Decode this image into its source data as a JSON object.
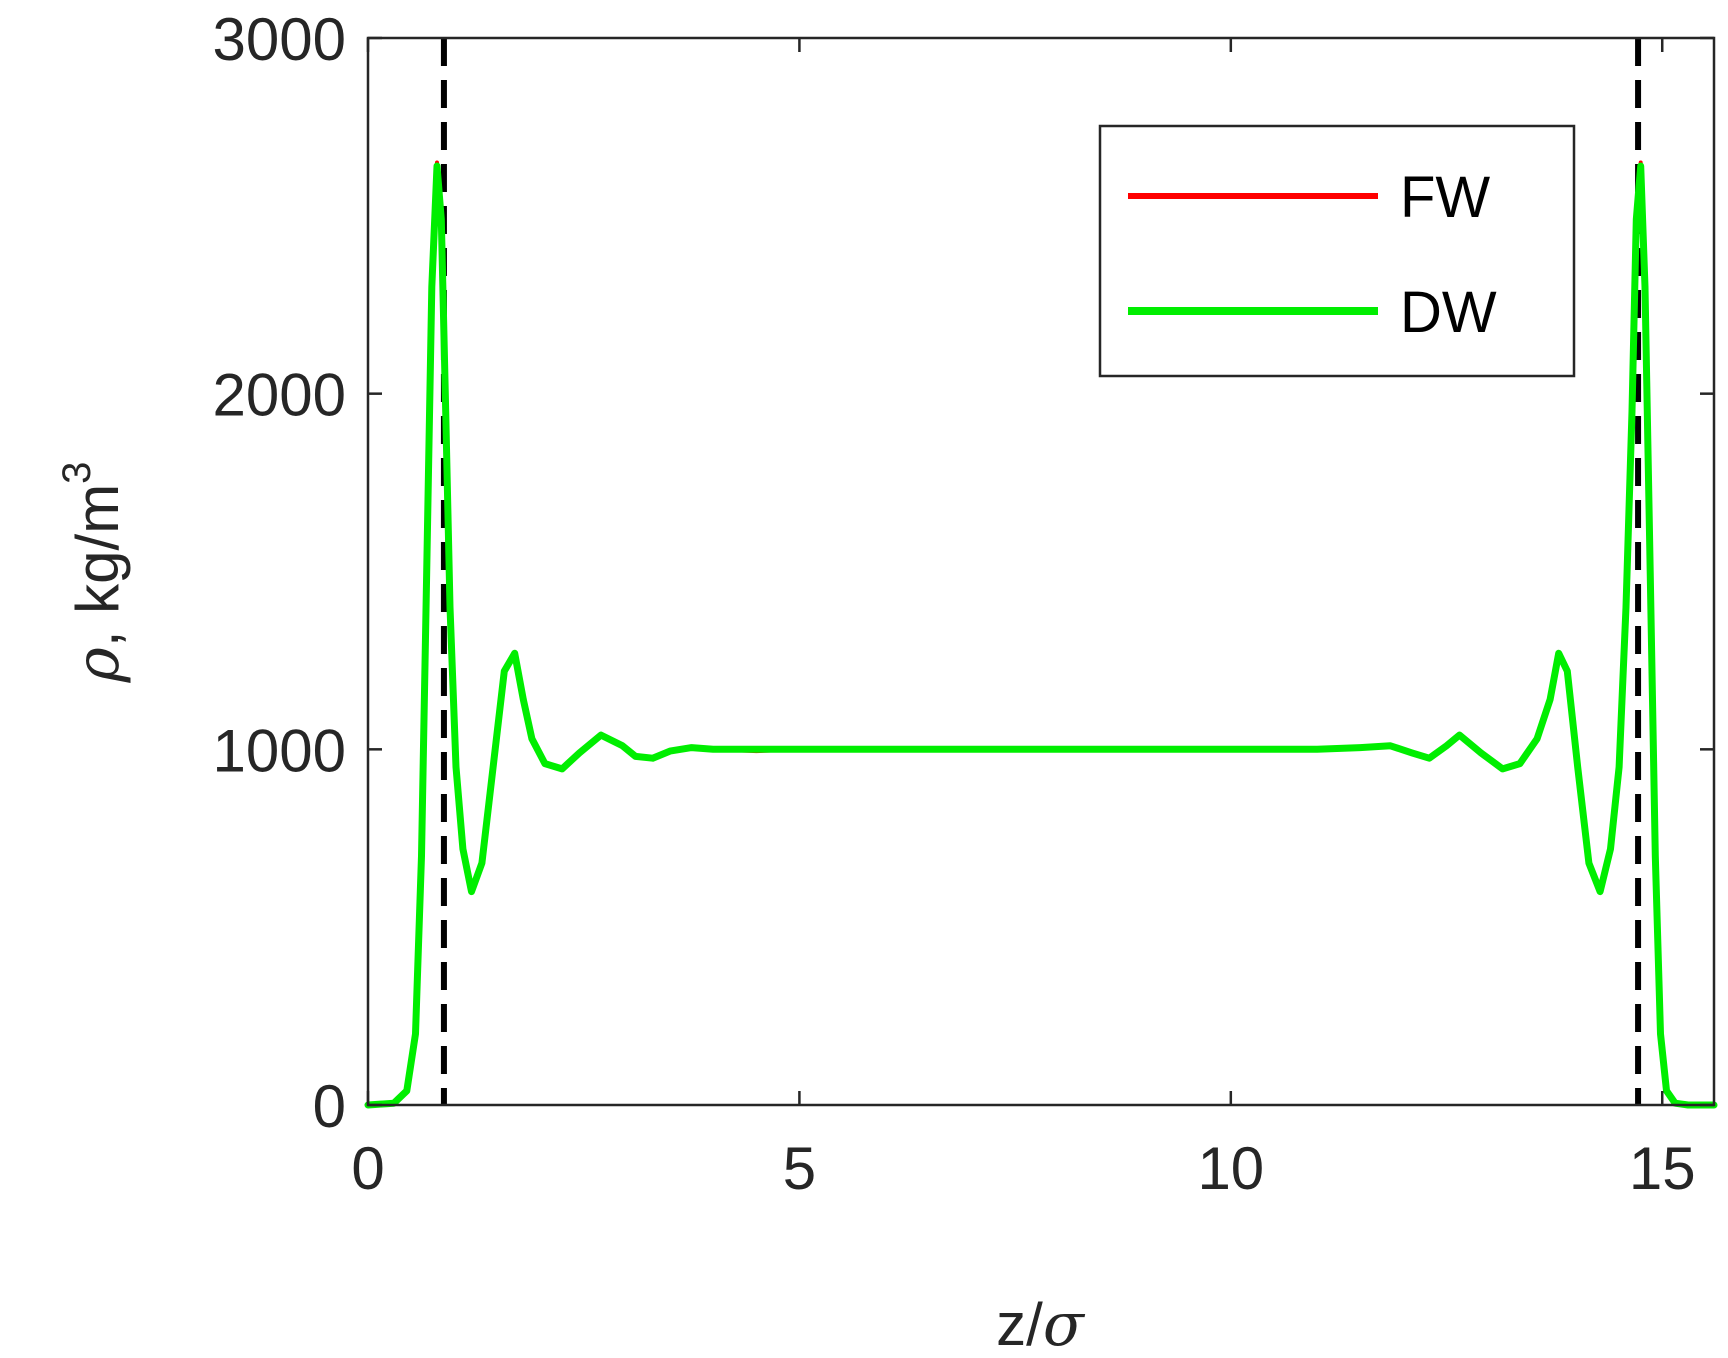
{
  "chart_data": {
    "type": "line",
    "title": "",
    "xlabel": {
      "main": "z/",
      "symbol": "σ"
    },
    "ylabel": {
      "symbol": "ρ",
      "main": ", kg/m",
      "superscript": "3"
    },
    "xlim": [
      0,
      15.6
    ],
    "ylim": [
      0,
      3000
    ],
    "xticks": [
      0,
      5,
      10,
      15
    ],
    "xtick_labels": [
      "0",
      "5",
      "10",
      "15"
    ],
    "yticks": [
      0,
      1000,
      2000,
      3000
    ],
    "ytick_labels": [
      "0",
      "1000",
      "2000",
      "3000"
    ],
    "grid": false,
    "legend_position": "top-right",
    "reference_lines": [
      {
        "type": "vertical",
        "x": 0.88,
        "style": "dashed",
        "color": "#000000"
      },
      {
        "type": "vertical",
        "x": 14.72,
        "style": "dashed",
        "color": "#000000"
      }
    ],
    "series": [
      {
        "name": "FW",
        "color": "#ff0000",
        "x": [
          0,
          0.3,
          0.45,
          0.55,
          0.62,
          0.68,
          0.74,
          0.8,
          0.85,
          0.9,
          0.95,
          1.02,
          1.1,
          1.2,
          1.32,
          1.45,
          1.58,
          1.7,
          1.8,
          1.9,
          2.05,
          2.25,
          2.45,
          2.7,
          2.95,
          3.1,
          3.3,
          3.5,
          3.75,
          4.0,
          4.5,
          5,
          6,
          7,
          8,
          9,
          10,
          11,
          11.5,
          11.85,
          12.1,
          12.3,
          12.5,
          12.65,
          12.9,
          13.15,
          13.35,
          13.55,
          13.7,
          13.8,
          13.9,
          14.02,
          14.15,
          14.28,
          14.4,
          14.5,
          14.58,
          14.65,
          14.7,
          14.75,
          14.8,
          14.86,
          14.92,
          14.98,
          15.05,
          15.15,
          15.3,
          15.6
        ],
        "values": [
          0,
          5,
          40,
          200,
          700,
          1500,
          2300,
          2650,
          2500,
          1950,
          1400,
          950,
          720,
          600,
          680,
          950,
          1220,
          1270,
          1140,
          1030,
          960,
          945,
          990,
          1040,
          1010,
          980,
          975,
          995,
          1005,
          1000,
          995,
          1000,
          1000,
          1000,
          1000,
          1000,
          1000,
          1000,
          1005,
          1010,
          990,
          975,
          1010,
          1040,
          990,
          945,
          960,
          1030,
          1140,
          1270,
          1220,
          950,
          680,
          600,
          720,
          950,
          1400,
          1950,
          2500,
          2650,
          2300,
          1500,
          700,
          200,
          40,
          5,
          0,
          0
        ]
      },
      {
        "name": "DW",
        "color": "#00ee00",
        "x": [
          0,
          0.3,
          0.45,
          0.55,
          0.62,
          0.68,
          0.74,
          0.8,
          0.85,
          0.9,
          0.95,
          1.02,
          1.1,
          1.2,
          1.32,
          1.45,
          1.58,
          1.7,
          1.8,
          1.9,
          2.05,
          2.25,
          2.45,
          2.7,
          2.95,
          3.1,
          3.3,
          3.5,
          3.75,
          4.0,
          4.5,
          5,
          6,
          7,
          8,
          9,
          10,
          11,
          11.5,
          11.85,
          12.1,
          12.3,
          12.5,
          12.65,
          12.9,
          13.15,
          13.35,
          13.55,
          13.7,
          13.8,
          13.9,
          14.02,
          14.15,
          14.28,
          14.4,
          14.5,
          14.58,
          14.65,
          14.7,
          14.75,
          14.8,
          14.86,
          14.92,
          14.98,
          15.05,
          15.15,
          15.3,
          15.6
        ],
        "values": [
          0,
          5,
          40,
          200,
          700,
          1500,
          2300,
          2640,
          2490,
          1950,
          1400,
          950,
          720,
          600,
          680,
          950,
          1220,
          1270,
          1140,
          1030,
          960,
          945,
          990,
          1040,
          1010,
          980,
          975,
          995,
          1005,
          1000,
          1000,
          1000,
          1000,
          1000,
          1000,
          1000,
          1000,
          1000,
          1005,
          1010,
          990,
          975,
          1010,
          1040,
          990,
          945,
          960,
          1030,
          1140,
          1270,
          1220,
          950,
          680,
          600,
          720,
          950,
          1400,
          1950,
          2490,
          2640,
          2300,
          1500,
          700,
          200,
          40,
          5,
          0,
          0
        ]
      }
    ]
  }
}
